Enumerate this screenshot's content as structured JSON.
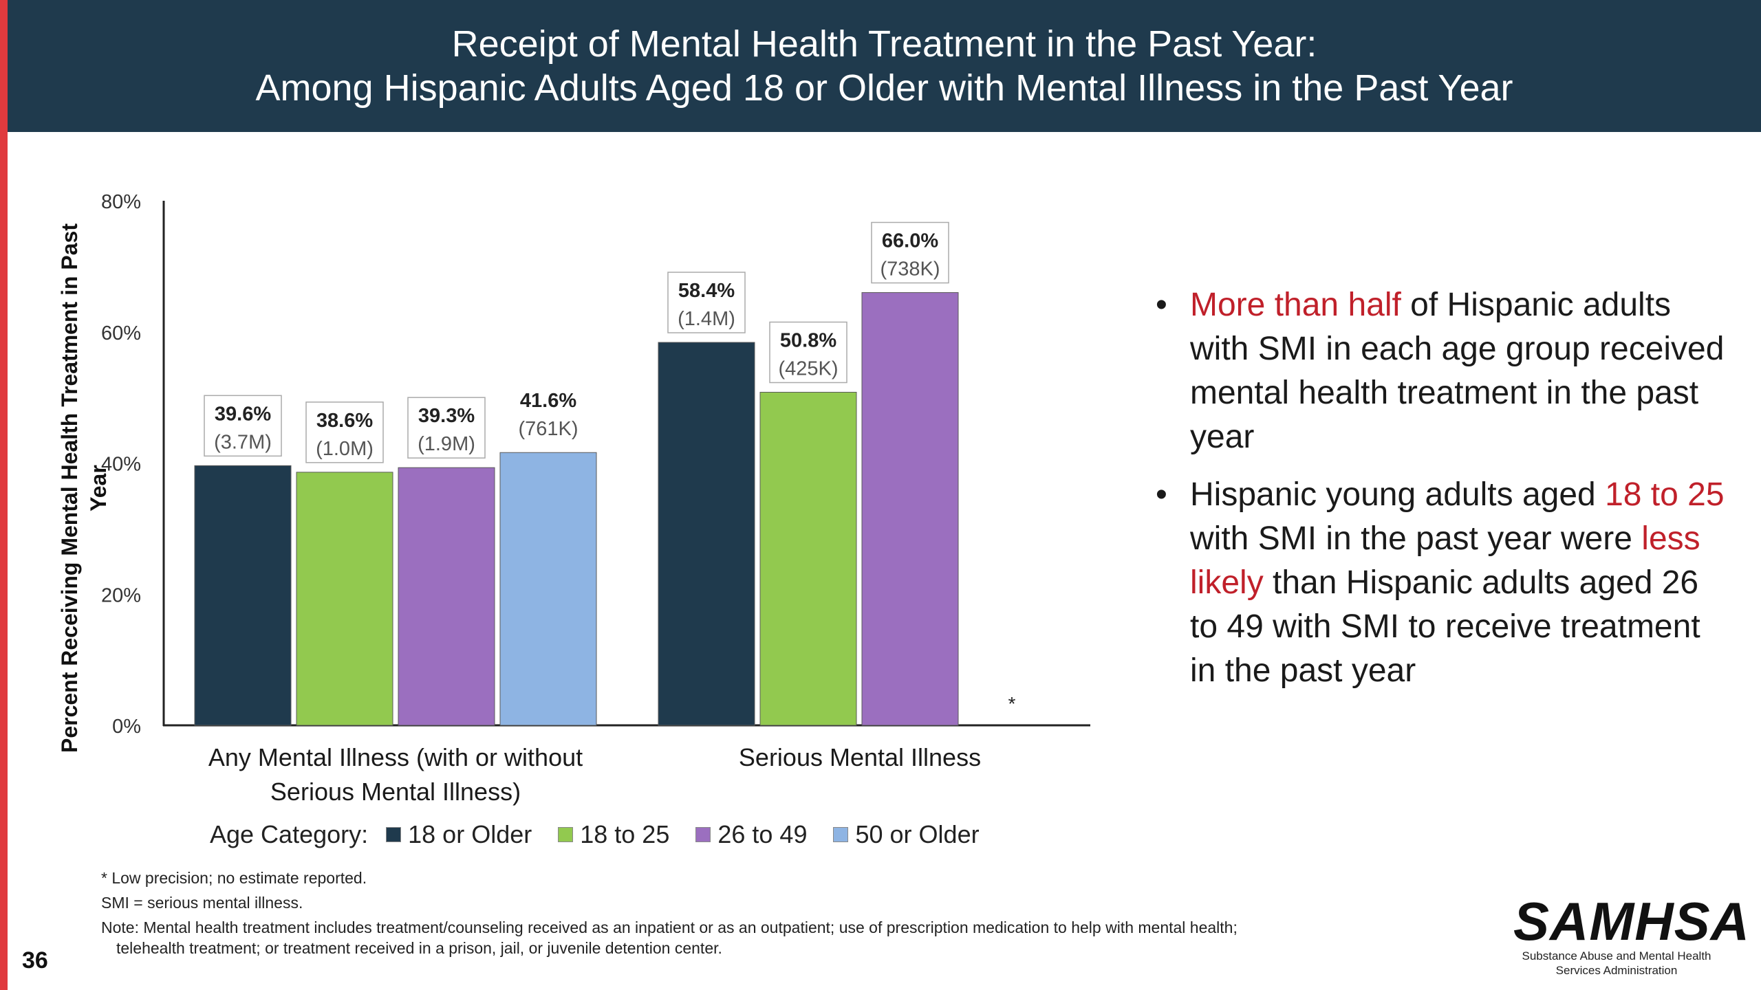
{
  "title": {
    "line1": "Receipt of Mental Health Treatment in the Past Year:",
    "line2": "Among Hispanic Adults Aged 18 or Older with Mental Illness in the Past Year"
  },
  "colors": {
    "title_bar": "#1f3a4d",
    "accent_red": "#e03a3e",
    "highlight_red": "#c0202a",
    "series": [
      "#1f3a4d",
      "#92c94f",
      "#9b6fbf",
      "#8eb4e3"
    ]
  },
  "chart_data": {
    "type": "bar",
    "ylabel": "Percent Receiving Mental Health Treatment in Past Year",
    "ylim": [
      0,
      80
    ],
    "yticks": [
      "0%",
      "20%",
      "40%",
      "60%",
      "80%"
    ],
    "categories": [
      "Any Mental Illness (with or without Serious Mental Illness)",
      "Serious Mental Illness"
    ],
    "legend_title": "Age Category:",
    "legend_position": "bottom",
    "grid": false,
    "series": [
      {
        "name": "18 or Older",
        "values": [
          39.6,
          58.4
        ],
        "labels": [
          "39.6%",
          "58.4%"
        ],
        "counts": [
          "(3.7M)",
          "(1.4M)"
        ]
      },
      {
        "name": "18 to 25",
        "values": [
          38.6,
          50.8
        ],
        "labels": [
          "38.6%",
          "50.8%"
        ],
        "counts": [
          "(1.0M)",
          "(425K)"
        ]
      },
      {
        "name": "26 to 49",
        "values": [
          39.3,
          66.0
        ],
        "labels": [
          "39.3%",
          "66.0%"
        ],
        "counts": [
          "(1.9M)",
          "(738K)"
        ]
      },
      {
        "name": "50 or Older",
        "values": [
          41.6,
          null
        ],
        "labels": [
          "41.6%",
          "*"
        ],
        "counts": [
          "(761K)",
          ""
        ]
      }
    ]
  },
  "bullets": {
    "b1": {
      "red": "More than half",
      "rest": " of Hispanic adults with SMI in each age group received mental health treatment in the past year"
    },
    "b2": {
      "t1": "Hispanic young adults aged ",
      "r1": "18 to 25",
      "t2": " with SMI in the past year were ",
      "r2": "less likely",
      "t3": " than Hispanic adults aged 26 to 49 with SMI to receive treatment in the past year"
    }
  },
  "footnotes": {
    "precision": "* Low precision; no estimate reported.",
    "smi": "SMI = serious mental illness.",
    "note": "Note: Mental health treatment includes treatment/counseling received as an inpatient or as an outpatient; use of prescription medication to help with mental health;",
    "note_cont": "telehealth treatment; or treatment received in a prison, jail, or juvenile detention center."
  },
  "page_number": "36",
  "logo": {
    "word": "SAMHSA",
    "sub1": "Substance Abuse and Mental Health",
    "sub2": "Services Administration"
  }
}
